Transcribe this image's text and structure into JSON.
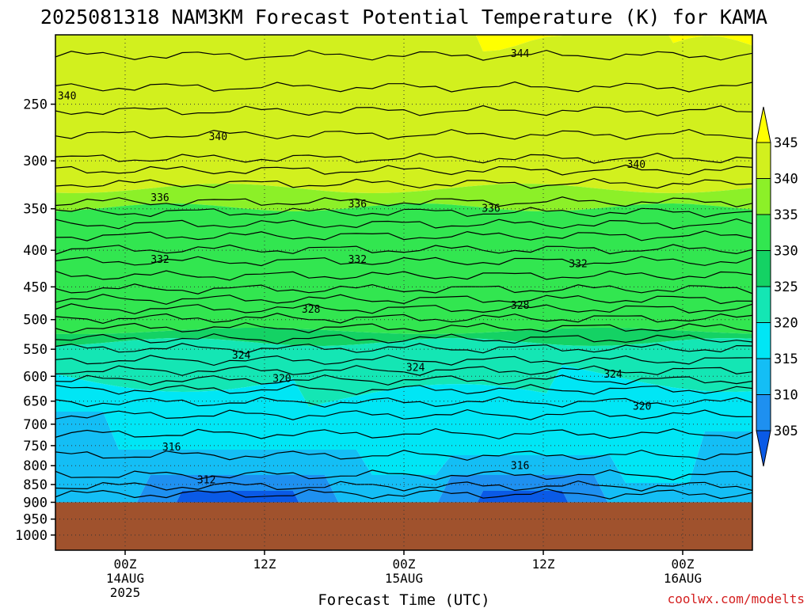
{
  "chart_data": {
    "type": "heatmap",
    "title": "2025081318 NAM3KM Forecast Potential Temperature (K) for KAMA",
    "xlabel": "Forecast Time (UTC)",
    "ylabel": "",
    "credit": "coolwx.com/modelts",
    "x_ticks": [
      {
        "hour": 6,
        "line1": "00Z",
        "line2": "14AUG",
        "line3": "2025"
      },
      {
        "hour": 18,
        "line1": "12Z",
        "line2": "",
        "line3": ""
      },
      {
        "hour": 30,
        "line1": "00Z",
        "line2": "15AUG",
        "line3": ""
      },
      {
        "hour": 42,
        "line1": "12Z",
        "line2": "",
        "line3": ""
      },
      {
        "hour": 54,
        "line1": "00Z",
        "line2": "16AUG",
        "line3": ""
      }
    ],
    "x_range_forecast_hours": [
      0,
      60
    ],
    "y_ticks": [
      "250",
      "300",
      "350",
      "400",
      "450",
      "500",
      "550",
      "600",
      "650",
      "700",
      "750",
      "800",
      "850",
      "900",
      "950",
      "1000"
    ],
    "y_scale": "log-pressure (hPa)",
    "y_range": [
      200,
      1050
    ],
    "colorbar": {
      "labels": [
        "305",
        "310",
        "315",
        "320",
        "325",
        "330",
        "335",
        "340",
        "345"
      ],
      "colors": [
        "#0a5ae6",
        "#1e90f0",
        "#14bef5",
        "#00e6f5",
        "#14e6b4",
        "#14d264",
        "#32e650",
        "#8cf028",
        "#d2f01e",
        "#ffff00"
      ]
    },
    "contour_labels": [
      {
        "text": "344",
        "hour": 40,
        "p": 212
      },
      {
        "text": "340",
        "hour": 1,
        "p": 243
      },
      {
        "text": "340",
        "hour": 14,
        "p": 277
      },
      {
        "text": "340",
        "hour": 50,
        "p": 303
      },
      {
        "text": "336",
        "hour": 9,
        "p": 337
      },
      {
        "text": "336",
        "hour": 26,
        "p": 344
      },
      {
        "text": "336",
        "hour": 37.5,
        "p": 349
      },
      {
        "text": "332",
        "hour": 9,
        "p": 411
      },
      {
        "text": "332",
        "hour": 26,
        "p": 411
      },
      {
        "text": "332",
        "hour": 45,
        "p": 417
      },
      {
        "text": "328",
        "hour": 22,
        "p": 483
      },
      {
        "text": "328",
        "hour": 40,
        "p": 477
      },
      {
        "text": "324",
        "hour": 16,
        "p": 560
      },
      {
        "text": "324",
        "hour": 31,
        "p": 582
      },
      {
        "text": "324",
        "hour": 48,
        "p": 595
      },
      {
        "text": "320",
        "hour": 19.5,
        "p": 603
      },
      {
        "text": "320",
        "hour": 50.5,
        "p": 660
      },
      {
        "text": "316",
        "hour": 10,
        "p": 752
      },
      {
        "text": "316",
        "hour": 40,
        "p": 798
      },
      {
        "text": "312",
        "hour": 13,
        "p": 836
      }
    ],
    "ground": {
      "color": "#a0522d",
      "top_pressure": 900
    }
  }
}
